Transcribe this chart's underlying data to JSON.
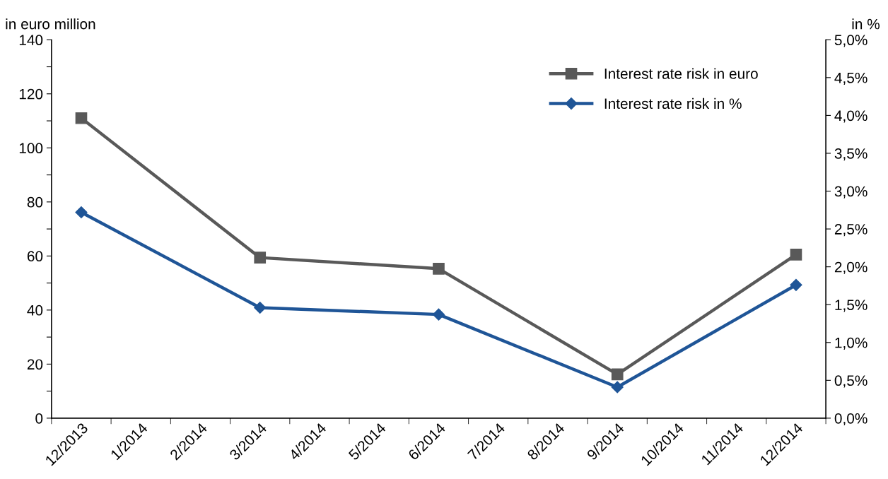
{
  "chart_data": {
    "type": "line",
    "categories": [
      "12/2013",
      "1/2014",
      "2/2014",
      "3/2014",
      "4/2014",
      "5/2014",
      "6/2014",
      "7/2014",
      "8/2014",
      "9/2014",
      "10/2014",
      "11/2014",
      "12/2014"
    ],
    "ylabel": "in euro million",
    "y2label": "in %",
    "ylim": [
      0,
      140
    ],
    "yticks": [
      0,
      {
        "value": 10,
        "label": null
      },
      20,
      {
        "value": 30,
        "label": null
      },
      40,
      {
        "value": 50,
        "label": null
      },
      60,
      {
        "value": 70,
        "label": null
      },
      80,
      {
        "value": 90,
        "label": null
      },
      100,
      {
        "value": 110,
        "label": null
      },
      120,
      {
        "value": 130,
        "label": null
      },
      140
    ],
    "y2lim": [
      0,
      5
    ],
    "y2ticks": [
      {
        "value": 0,
        "label": "0,0%"
      },
      {
        "value": 0.5,
        "label": "0,5%"
      },
      {
        "value": 1,
        "label": "1,0%"
      },
      {
        "value": 1.5,
        "label": "1,5%"
      },
      {
        "value": 2,
        "label": "2,0%"
      },
      {
        "value": 2.5,
        "label": "2,5%"
      },
      {
        "value": 3,
        "label": "3,0%"
      },
      {
        "value": 3.5,
        "label": "3,5%"
      },
      {
        "value": 4,
        "label": "4,0%"
      },
      {
        "value": 4.5,
        "label": "4,5%"
      },
      {
        "value": 5,
        "label": "5,0%"
      }
    ],
    "grid": false,
    "legend": "top right",
    "line_style": "solid",
    "series": [
      {
        "name": "Interest rate risk in euro",
        "color": "#595959",
        "marker": "square",
        "values": [
          111,
          null,
          null,
          59.4,
          null,
          null,
          55.3,
          null,
          null,
          16.2,
          null,
          null,
          60.5
        ]
      },
      {
        "name": "Interest rate risk in %",
        "color": "#1f5597",
        "marker": "diamond",
        "axis": "y2",
        "values": [
          2.72,
          null,
          null,
          1.46,
          null,
          null,
          1.37,
          null,
          null,
          0.41,
          null,
          null,
          1.76
        ]
      }
    ]
  }
}
